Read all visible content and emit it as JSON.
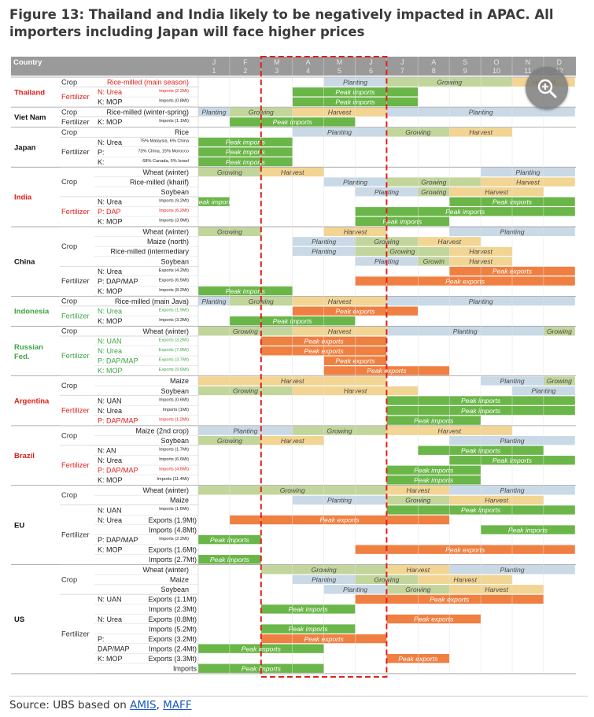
{
  "figure": {
    "title": "Figure 13: Thailand and India likely to be negatively impacted in APAC. All importers including Japan will face higher prices",
    "source_prefix": "Source: UBS based on",
    "source_sep": ",",
    "source_links": [
      "AMIS",
      "MAFF"
    ],
    "zoom_icon": "zoom-in-icon"
  },
  "header": {
    "country": "Country",
    "months": [
      "J",
      "F",
      "M",
      "A",
      "M",
      "J",
      "J",
      "A",
      "S",
      "O",
      "N",
      "D"
    ],
    "month_nums": [
      "1",
      "2",
      "3",
      "4",
      "5",
      "6",
      "7",
      "8",
      "9",
      "10",
      "11",
      "12"
    ]
  },
  "colors": {
    "Planting": "#c9d9e6",
    "Growing": "#c2d59b",
    "Harvest": "#f2d493",
    "Peak imports": "#6ab648",
    "Peak exports": "#ef8042",
    "header": "#9a9a9a",
    "header_text": "#ffffff",
    "red": "#e0201c",
    "green": "#3ea546"
  },
  "groups": [
    {
      "country": "Thailand",
      "color": "red",
      "rows": [
        {
          "cat": "Crop",
          "item": "Rice-milled (main season)",
          "red": true,
          "bars": [
            [
              4,
              6,
              "Planting"
            ],
            [
              6,
              10,
              "Growing"
            ],
            [
              10,
              12,
              "Harvest"
            ]
          ]
        },
        {
          "cat": "Fertilizer",
          "item": "N: Urea",
          "sub": "Imports (2.2Mt)",
          "red": true,
          "bars": [
            [
              3,
              7,
              "Peak imports"
            ]
          ]
        },
        {
          "cat": "",
          "item": "K: MOP",
          "sub": "Imports (0.8Mt)",
          "bars": [
            [
              3,
              7,
              "Peak imports"
            ]
          ]
        }
      ]
    },
    {
      "country": "Viet Nam",
      "rows": [
        {
          "cat": "Crop",
          "item": "Rice-milled (winter-spring)",
          "bars": [
            [
              0,
              1,
              "Planting"
            ],
            [
              1,
              3,
              "Growing"
            ],
            [
              3,
              6,
              "Harvest"
            ],
            [
              6,
              12,
              "Planting"
            ]
          ]
        },
        {
          "cat": "Fertilizer",
          "item": "K: MOP",
          "sub": "Imports (1.1Mt)",
          "bars": [
            [
              1,
              5,
              "Peak imports"
            ]
          ]
        }
      ]
    },
    {
      "country": "Japan",
      "rows": [
        {
          "cat": "Crop",
          "item": "Rice",
          "bars": [
            [
              3,
              6,
              "Planting"
            ],
            [
              6,
              8,
              "Growing"
            ],
            [
              8,
              10,
              "Harvest"
            ]
          ]
        },
        {
          "cat": "Fertilizer",
          "item": "N: Urea",
          "sub": "75% Malaysia, 6% China",
          "bars": [
            [
              0,
              3,
              "Peak imports"
            ]
          ]
        },
        {
          "cat": "",
          "item": "P:",
          "sub": "73% China, 15% Morocco",
          "bars": [
            [
              0,
              3,
              "Peak imports"
            ]
          ]
        },
        {
          "cat": "",
          "item": "K:",
          "sub": "68% Canada, 5% Israel",
          "bars": [
            [
              0,
              3,
              "Peak imports"
            ]
          ]
        }
      ]
    },
    {
      "country": "India",
      "color": "red",
      "rows": [
        {
          "cat": "",
          "item": "Wheat (winter)",
          "bars": [
            [
              0,
              2,
              "Growing"
            ],
            [
              2,
              4,
              "Harvest"
            ],
            [
              9,
              12,
              "Planting"
            ]
          ]
        },
        {
          "cat": "Crop",
          "item": "Rice-milled (kharif)",
          "bars": [
            [
              4,
              6,
              "Planting"
            ],
            [
              6,
              9,
              "Growing"
            ],
            [
              9,
              12,
              "Harvest"
            ]
          ]
        },
        {
          "cat": "",
          "item": "Soybean",
          "bars": [
            [
              5,
              7,
              "Planting"
            ],
            [
              7,
              8,
              "Growing"
            ],
            [
              8,
              11,
              "Harvest"
            ]
          ]
        },
        {
          "cat": "",
          "item": "N: Urea",
          "sub": "Imports (9.2Mt)",
          "bars": [
            [
              0,
              1,
              "Peak imports"
            ],
            [
              8,
              12,
              "Peak imports"
            ]
          ]
        },
        {
          "cat": "Fertilizer",
          "item": "P: DAP",
          "sub": "Imports (6.2Mt)",
          "red": true,
          "bars": [
            [
              5,
              12,
              "Peak imports"
            ]
          ]
        },
        {
          "cat": "",
          "item": "K: MOP",
          "sub": "Imports (3.9Mt)",
          "bars": [
            [
              5,
              8,
              "Peak imports"
            ]
          ]
        }
      ]
    },
    {
      "country": "China",
      "rows": [
        {
          "cat": "",
          "item": "Wheat (winter)",
          "bars": [
            [
              0,
              2,
              "Growing"
            ],
            [
              4,
              6,
              "Harvest"
            ],
            [
              8,
              12,
              "Planting"
            ]
          ]
        },
        {
          "cat": "Crop",
          "item": "Maize (north)",
          "bars": [
            [
              3,
              5,
              "Planting"
            ],
            [
              5,
              7,
              "Growing"
            ],
            [
              7,
              9,
              "Harvest"
            ]
          ]
        },
        {
          "cat": "",
          "item": "Rice-milled (intermediary",
          "bars": [
            [
              3,
              5,
              "Planting"
            ],
            [
              5,
              8,
              "Growing"
            ],
            [
              8,
              10,
              "Harvest"
            ]
          ]
        },
        {
          "cat": "",
          "item": "Soybean",
          "bars": [
            [
              5,
              7,
              "Planting"
            ],
            [
              7,
              8,
              "Growin"
            ],
            [
              8,
              10,
              "Harvest"
            ]
          ]
        },
        {
          "cat": "",
          "item": "N: Urea",
          "sub": "Exports (4.2Mt)",
          "bars": [
            [
              8,
              12,
              "Peak exports"
            ]
          ]
        },
        {
          "cat": "Fertilizer",
          "item": "P: DAP/MAP",
          "sub": "Exports (6.5Mt)",
          "bars": [
            [
              5,
              12,
              "Peak exports"
            ]
          ]
        },
        {
          "cat": "",
          "item": "K: MOP",
          "sub": "Imports (8.2Mt)",
          "bars": [
            [
              0,
              3,
              "Peak imports"
            ]
          ]
        }
      ]
    },
    {
      "country": "Indonesia",
      "color": "green",
      "rows": [
        {
          "cat": "Crop",
          "item": "Rice-milled (main Java)",
          "bars": [
            [
              0,
              1,
              "Planting"
            ],
            [
              1,
              3,
              "Growing"
            ],
            [
              3,
              6,
              "Harvest"
            ],
            [
              6,
              12,
              "Planting"
            ]
          ]
        },
        {
          "cat": "Fertilizer",
          "item": "N: Urea",
          "sub": "Exports (1.9Mt)",
          "green": true,
          "bars": [
            [
              3,
              7,
              "Peak exports"
            ]
          ]
        },
        {
          "cat": "",
          "item": "K: MOP",
          "sub": "Imports (3.3Mt)",
          "bars": [
            [
              1,
              5,
              "Peak imports"
            ]
          ]
        }
      ]
    },
    {
      "country": "Russian Fed.",
      "color": "green",
      "rows": [
        {
          "cat": "Crop",
          "item": "Wheat (winter)",
          "bars": [
            [
              0,
              3,
              "Growing"
            ],
            [
              3,
              6,
              "Harvest"
            ],
            [
              6,
              11,
              "Planting"
            ],
            [
              11,
              12,
              "Growing"
            ]
          ]
        },
        {
          "cat": "Fertilizer",
          "item": "N: UAN",
          "sub": "Exports (3.2Mt)",
          "green": true,
          "bars": [
            [
              2,
              6,
              "Peak exports"
            ]
          ]
        },
        {
          "cat": "",
          "item": "N: Urea",
          "sub": "Exports (7.9Mt)",
          "green": true,
          "bars": [
            [
              2,
              6,
              "Peak exports"
            ]
          ]
        },
        {
          "cat": "",
          "item": "P: DAP/MAP",
          "sub": "Exports (3.7Mt)",
          "green": true,
          "bars": [
            [
              4,
              6,
              "Peak exports"
            ]
          ]
        },
        {
          "cat": "",
          "item": "K: MOP",
          "sub": "Exports (9.6Mt)",
          "green": true,
          "bars": [
            [
              4,
              8,
              "Peak exports"
            ]
          ]
        }
      ]
    },
    {
      "country": "Argentina",
      "color": "red",
      "rows": [
        {
          "cat": "Crop",
          "item": "Maize",
          "bars": [
            [
              0,
              6,
              "Harvest"
            ],
            [
              9,
              11,
              "Planting"
            ],
            [
              11,
              12,
              "Growing"
            ]
          ]
        },
        {
          "cat": "",
          "item": "Soybean",
          "bars": [
            [
              0,
              3,
              "Growing"
            ],
            [
              3,
              7,
              "Harvest"
            ],
            [
              10,
              12,
              "Planting"
            ]
          ]
        },
        {
          "cat": "",
          "item": "N: UAN",
          "sub": "Imports (0.6Mt)",
          "bars": [
            [
              6,
              12,
              "Peak imports"
            ]
          ]
        },
        {
          "cat": "Fertilizer",
          "item": "N: Urea",
          "sub": "Imports (1Mt)",
          "bars": [
            [
              6,
              12,
              "Peak imports"
            ]
          ]
        },
        {
          "cat": "",
          "item": "P: DAP/MAP",
          "sub": "Imports (1.2Mt)",
          "red": true,
          "bars": [
            [
              6,
              9,
              "Peak imports"
            ]
          ]
        }
      ]
    },
    {
      "country": "Brazil",
      "color": "red",
      "rows": [
        {
          "cat": "Crop",
          "item": "Maize (2nd crop)",
          "bars": [
            [
              0,
              3,
              "Planting"
            ],
            [
              3,
              6,
              "Growing"
            ],
            [
              6,
              10,
              "Harvest"
            ]
          ]
        },
        {
          "cat": "",
          "item": "Soybean",
          "bars": [
            [
              0,
              2,
              "Growing"
            ],
            [
              2,
              4,
              "Harvest"
            ],
            [
              8,
              12,
              "Planting"
            ]
          ]
        },
        {
          "cat": "",
          "item": "N: AN",
          "sub": "Imports (1.7Mt)",
          "bars": [
            [
              7,
              11,
              "Peak imports"
            ]
          ]
        },
        {
          "cat": "Fertilizer",
          "item": "N: Urea",
          "sub": "Imports (6.6Mt)",
          "bars": [
            [
              8,
              12,
              "Peak imports"
            ]
          ]
        },
        {
          "cat": "",
          "item": "P: DAP/MAP",
          "sub": "Imports (4.6Mt)",
          "red": true,
          "bars": [
            [
              6,
              9,
              "Peak imports"
            ]
          ]
        },
        {
          "cat": "",
          "item": "K: MOP",
          "sub": "Imports (11.4Mt)",
          "bars": [
            [
              6,
              9,
              "Peak imports"
            ]
          ]
        }
      ]
    },
    {
      "country": "EU",
      "rows": [
        {
          "cat": "Crop",
          "item": "Wheat (winter)",
          "bars": [
            [
              0,
              6,
              "Growing"
            ],
            [
              6,
              8,
              "Harvest"
            ],
            [
              8,
              12,
              "Planting"
            ]
          ]
        },
        {
          "cat": "",
          "item": "Maize",
          "bars": [
            [
              3,
              6,
              "Planting"
            ],
            [
              6,
              8,
              "Growing"
            ],
            [
              8,
              11,
              "Harvest"
            ]
          ]
        },
        {
          "cat": "",
          "item": "N: UAN",
          "sub": "Imports (1.6Mt)",
          "bars": [
            [
              6,
              12,
              "Peak imports"
            ]
          ]
        },
        {
          "cat": "Fertilizer",
          "item": "N: Urea",
          "sub2": "Exports (1.9Mt)",
          "bars": [
            [
              1,
              8,
              "Peak exports"
            ]
          ]
        },
        {
          "cat": "",
          "item": "",
          "sub2": "Imports (4.8Mt)",
          "bars": [
            [
              9,
              12,
              "Peak imports"
            ]
          ]
        },
        {
          "cat": "",
          "item": "P: DAP/MAP",
          "sub": "Imports (2.2Mt)",
          "bars": [
            [
              0,
              2,
              "Peak imports"
            ]
          ]
        },
        {
          "cat": "",
          "item": "K: MOP",
          "sub2": "Exports (1.6Mt)",
          "bars": [
            [
              5,
              12,
              "Peak exports"
            ]
          ]
        },
        {
          "cat": "",
          "item": "",
          "sub2": "Imports (2.7Mt)",
          "bars": [
            [
              0,
              2,
              "Peak imports"
            ]
          ]
        }
      ]
    },
    {
      "country": "US",
      "rows": [
        {
          "cat": "Crop",
          "item": "Wheat (winter)",
          "bars": [
            [
              2,
              6,
              "Growing"
            ],
            [
              6,
              8,
              "Harvest"
            ],
            [
              8,
              12,
              "Planting"
            ]
          ]
        },
        {
          "cat": "",
          "item": "Maize",
          "bars": [
            [
              3,
              5,
              "Planting"
            ],
            [
              5,
              7,
              "Growing"
            ],
            [
              7,
              10,
              "Harvest"
            ]
          ]
        },
        {
          "cat": "",
          "item": "Soybean",
          "bars": [
            [
              4,
              6,
              "Planting"
            ],
            [
              6,
              8,
              "Growing"
            ],
            [
              8,
              11,
              "Harvest"
            ]
          ]
        },
        {
          "cat": "",
          "item": "N: UAN",
          "sub2": "Exports (1.1Mt)",
          "bars": [
            [
              5,
              11,
              "Peak exports"
            ]
          ]
        },
        {
          "cat": "",
          "item": "",
          "sub2": "Imports (2.3Mt)",
          "bars": [
            [
              2,
              5,
              "Peak imports"
            ]
          ]
        },
        {
          "cat": "Fertilizer",
          "item": "N: Urea",
          "sub2": "Exports (0.8Mt)",
          "bars": [
            [
              6,
              9,
              "Peak exports"
            ]
          ]
        },
        {
          "cat": "",
          "item": "",
          "sub2": "Imports (5.2Mt)",
          "bars": [
            [
              2,
              5,
              "Peak imports"
            ]
          ]
        },
        {
          "cat": "",
          "item": "P:",
          "sub2": "Exports (3.2Mt)",
          "bars": [
            [
              2,
              6,
              "Peak exports"
            ]
          ]
        },
        {
          "cat": "",
          "item": "DAP/MAP",
          "sub2": "Imports (2.4Mt)",
          "bars": [
            [
              0,
              4,
              "Peak imports"
            ]
          ]
        },
        {
          "cat": "",
          "item": "K: MOP",
          "sub2": "Exports (3.3Mt)",
          "bars": [
            [
              6,
              8,
              "Peak exports"
            ]
          ]
        },
        {
          "cat": "",
          "item": "",
          "sub2": "Imports",
          "bars": [
            [
              0,
              4,
              "Peak imports"
            ]
          ]
        }
      ]
    }
  ]
}
